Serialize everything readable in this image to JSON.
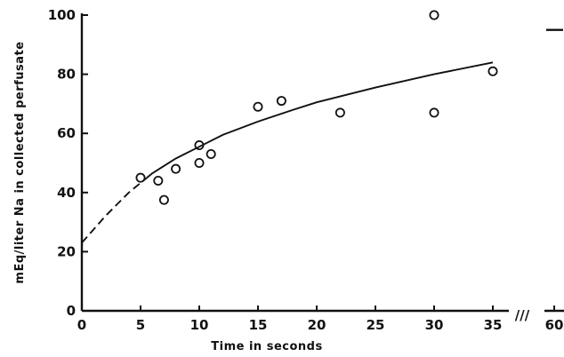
{
  "chart_data": {
    "type": "scatter",
    "xlabel": "Time in seconds",
    "ylabel": "mEq/liter Na in collected perfusate",
    "xlim": [
      0,
      35
    ],
    "ylim": [
      0,
      100
    ],
    "x_ticks": [
      0,
      5,
      10,
      15,
      20,
      25,
      30,
      35
    ],
    "y_ticks": [
      0,
      20,
      40,
      60,
      80,
      100
    ],
    "break_tick_label": "60",
    "axis_break_marks": "///",
    "series": [
      {
        "values": [
          {
            "x": 5,
            "y": 45
          },
          {
            "x": 6.5,
            "y": 44
          },
          {
            "x": 7,
            "y": 37.5
          },
          {
            "x": 8,
            "y": 48
          },
          {
            "x": 10,
            "y": 56
          },
          {
            "x": 10,
            "y": 50
          },
          {
            "x": 11,
            "y": 53
          },
          {
            "x": 15,
            "y": 69
          },
          {
            "x": 17,
            "y": 71
          },
          {
            "x": 22,
            "y": 67
          },
          {
            "x": 30,
            "y": 100
          },
          {
            "x": 30,
            "y": 67
          },
          {
            "x": 35,
            "y": 81
          }
        ]
      }
    ],
    "fit_curve": {
      "dashed_range": [
        0,
        5.5
      ],
      "solid_range": [
        5.5,
        35
      ],
      "points": [
        {
          "x": 0,
          "y": 23
        },
        {
          "x": 2,
          "y": 32
        },
        {
          "x": 4,
          "y": 40
        },
        {
          "x": 6,
          "y": 46.5
        },
        {
          "x": 8,
          "y": 51.5
        },
        {
          "x": 10,
          "y": 55.5
        },
        {
          "x": 12,
          "y": 59.5
        },
        {
          "x": 15,
          "y": 64
        },
        {
          "x": 18,
          "y": 68
        },
        {
          "x": 20,
          "y": 70.5
        },
        {
          "x": 25,
          "y": 75.5
        },
        {
          "x": 30,
          "y": 80
        },
        {
          "x": 35,
          "y": 84
        }
      ]
    },
    "value_at_60": 95,
    "grid": false
  }
}
